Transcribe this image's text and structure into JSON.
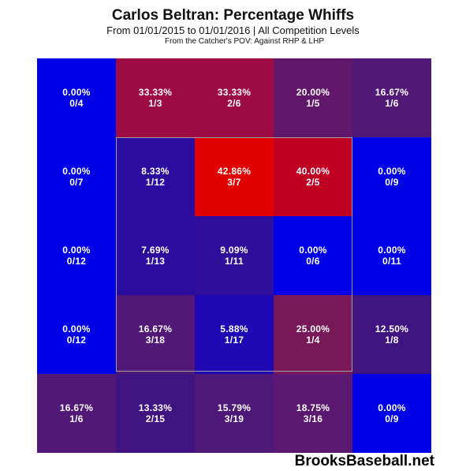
{
  "chart_data": {
    "type": "heatmap",
    "title": "Carlos Beltran: Percentage Whiffs",
    "subtitle": "From 01/01/2015 to 01/01/2016 | All Competition Levels",
    "note": "From the Catcher's POV:   Against RHP & LHP",
    "rows": [
      [
        {
          "pct": "0.00%",
          "count": "0/4",
          "value": 0.0,
          "color": "#0000e6"
        },
        {
          "pct": "33.33%",
          "count": "1/3",
          "value": 33.33,
          "color": "#9e0a44"
        },
        {
          "pct": "33.33%",
          "count": "2/6",
          "value": 33.33,
          "color": "#9e0a44"
        },
        {
          "pct": "20.00%",
          "count": "1/5",
          "value": 20.0,
          "color": "#61176a"
        },
        {
          "pct": "16.67%",
          "count": "1/6",
          "value": 16.67,
          "color": "#521878"
        }
      ],
      [
        {
          "pct": "0.00%",
          "count": "0/7",
          "value": 0.0,
          "color": "#0000e6"
        },
        {
          "pct": "8.33%",
          "count": "1/12",
          "value": 8.33,
          "color": "#2a0c9e"
        },
        {
          "pct": "42.86%",
          "count": "3/7",
          "value": 42.86,
          "color": "#e00000"
        },
        {
          "pct": "40.00%",
          "count": "2/5",
          "value": 40.0,
          "color": "#c00022"
        },
        {
          "pct": "0.00%",
          "count": "0/9",
          "value": 0.0,
          "color": "#0000e6"
        }
      ],
      [
        {
          "pct": "0.00%",
          "count": "0/12",
          "value": 0.0,
          "color": "#0000e6"
        },
        {
          "pct": "7.69%",
          "count": "1/13",
          "value": 7.69,
          "color": "#2a0c9e"
        },
        {
          "pct": "9.09%",
          "count": "1/11",
          "value": 9.09,
          "color": "#2e0e9a"
        },
        {
          "pct": "0.00%",
          "count": "0/6",
          "value": 0.0,
          "color": "#0000e6"
        },
        {
          "pct": "0.00%",
          "count": "0/11",
          "value": 0.0,
          "color": "#0000e6"
        }
      ],
      [
        {
          "pct": "0.00%",
          "count": "0/12",
          "value": 0.0,
          "color": "#0000e6"
        },
        {
          "pct": "16.67%",
          "count": "3/18",
          "value": 16.67,
          "color": "#521878"
        },
        {
          "pct": "5.88%",
          "count": "1/17",
          "value": 5.88,
          "color": "#1e08b4"
        },
        {
          "pct": "25.00%",
          "count": "1/4",
          "value": 25.0,
          "color": "#781858"
        },
        {
          "pct": "12.50%",
          "count": "1/8",
          "value": 12.5,
          "color": "#401480"
        }
      ],
      [
        {
          "pct": "16.67%",
          "count": "1/6",
          "value": 16.67,
          "color": "#521878"
        },
        {
          "pct": "13.33%",
          "count": "2/15",
          "value": 13.33,
          "color": "#401480"
        },
        {
          "pct": "15.79%",
          "count": "3/19",
          "value": 15.79,
          "color": "#4e1878"
        },
        {
          "pct": "18.75%",
          "count": "3/16",
          "value": 18.75,
          "color": "#5a1870"
        },
        {
          "pct": "0.00%",
          "count": "0/9",
          "value": 0.0,
          "color": "#0000e6"
        }
      ]
    ]
  },
  "watermark": "BrooksBaseball.net"
}
